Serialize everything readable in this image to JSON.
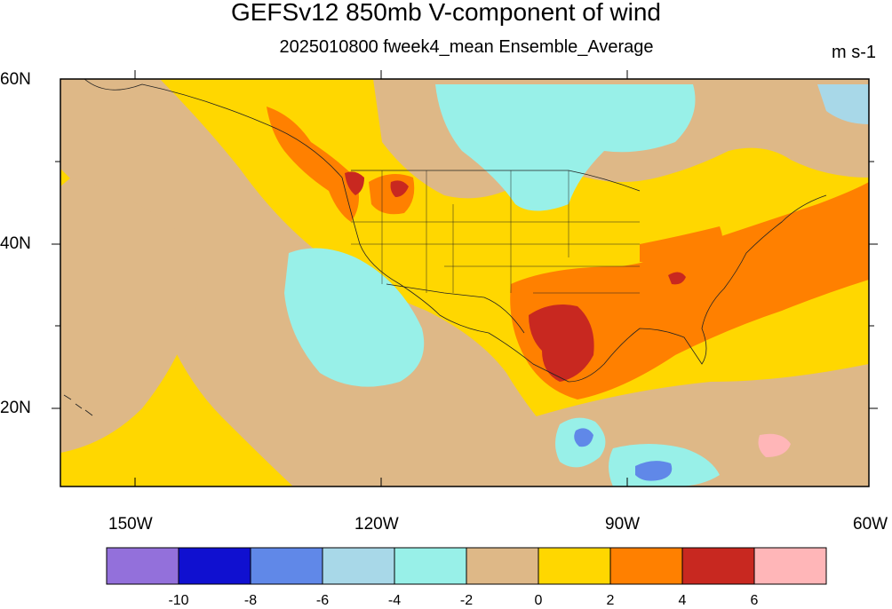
{
  "title": "GEFSv12 850mb V-component of wind",
  "subtitle": "2025010800 fweek4_mean Ensemble_Average",
  "units": "m s-1",
  "lat_labels": [
    "60N",
    "40N",
    "20N"
  ],
  "lon_labels": [
    "150W",
    "120W",
    "90W",
    "60W"
  ],
  "colorbar": {
    "colors": [
      "#9370DB",
      "#1010D0",
      "#6088E8",
      "#A8D8E8",
      "#98F0E8",
      "#DEB887",
      "#FFD700",
      "#FF8000",
      "#C82820",
      "#FFB6B8"
    ],
    "ticks": [
      "-10",
      "-8",
      "-6",
      "-4",
      "-2",
      "0",
      "2",
      "4",
      "6"
    ]
  },
  "colors": {
    "ocean_base": "#FFD700",
    "neg_low": "#DEB887",
    "pos_mid": "#FF8000",
    "pos_high": "#C82820",
    "neg_mid": "#98F0E8",
    "neg_strong": "#A8D8E8"
  }
}
